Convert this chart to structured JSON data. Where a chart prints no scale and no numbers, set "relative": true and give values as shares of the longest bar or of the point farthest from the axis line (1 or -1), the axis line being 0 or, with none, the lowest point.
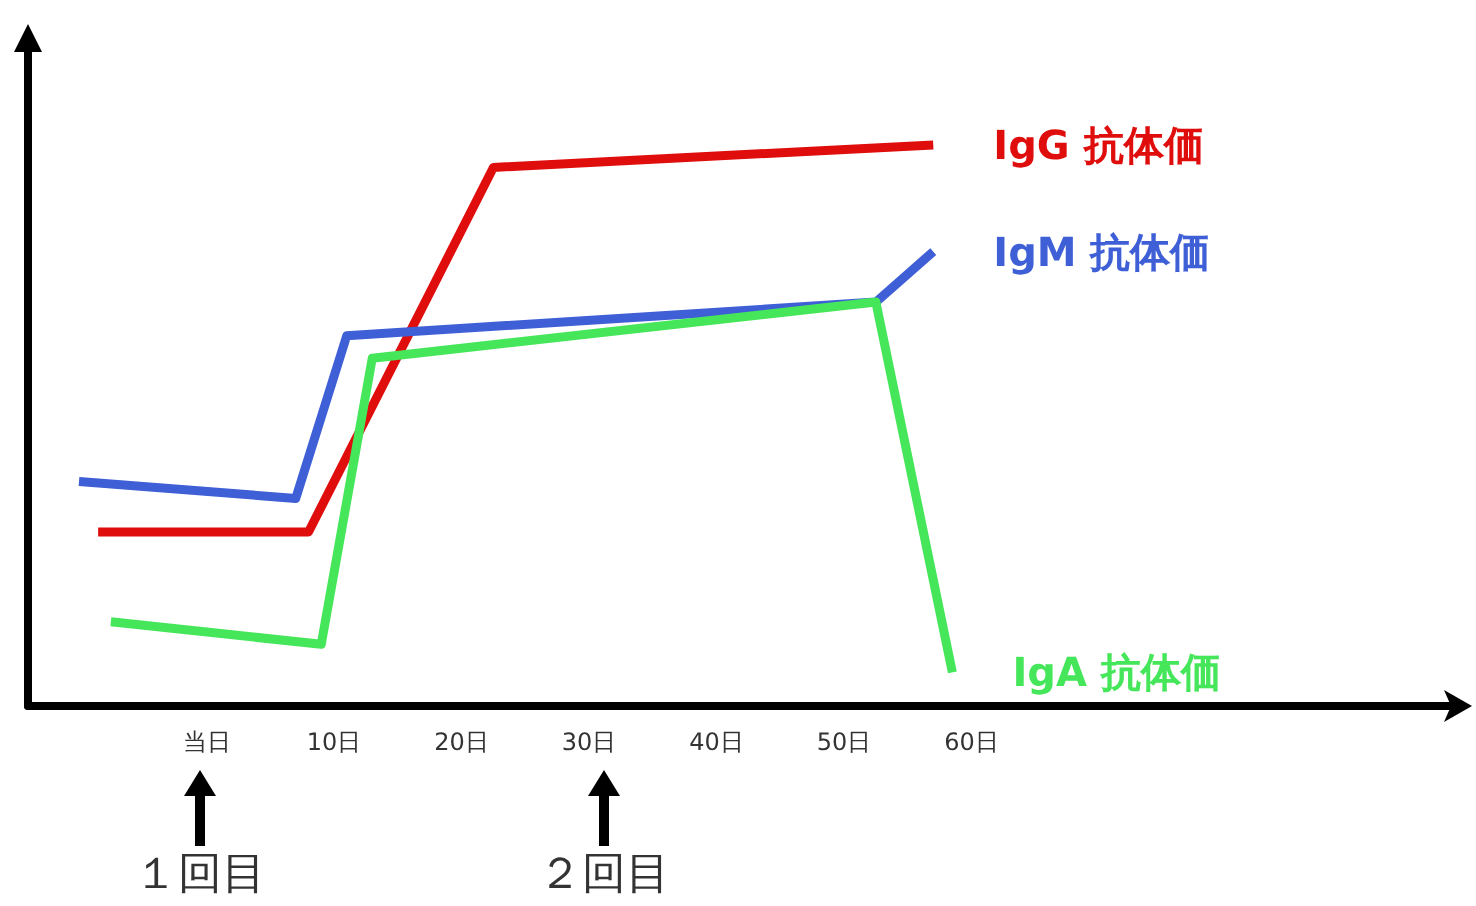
{
  "chart_data": {
    "type": "line",
    "relative": true,
    "xlim": [
      -14,
      98
    ],
    "xticks": [
      {
        "value": 0,
        "label": "当日"
      },
      {
        "value": 10,
        "label": "10日"
      },
      {
        "value": 20,
        "label": "20日"
      },
      {
        "value": 30,
        "label": "30日"
      },
      {
        "value": 40,
        "label": "40日"
      },
      {
        "value": 50,
        "label": "50日"
      },
      {
        "value": 60,
        "label": "60日"
      }
    ],
    "series": [
      {
        "name": "IgG 抗体価",
        "color": "#e00d0d",
        "x": [
          -8.5,
          8,
          22.5,
          57
        ],
        "values": [
          0.31,
          0.31,
          0.96,
          1
        ]
      },
      {
        "name": "IgM 抗体価",
        "color": "#3f5fd6",
        "x": [
          -10,
          7,
          11,
          52.5,
          57
        ],
        "values": [
          0.4,
          0.37,
          0.66,
          0.72,
          0.81
        ]
      },
      {
        "name": "IgA 抗体価",
        "color": "#45e65a",
        "x": [
          -7.5,
          9,
          13,
          52.5,
          58.5
        ],
        "values": [
          0.15,
          0.11,
          0.62,
          0.72,
          0.06
        ]
      }
    ],
    "annotations": [
      "１回目",
      "２回目"
    ]
  }
}
